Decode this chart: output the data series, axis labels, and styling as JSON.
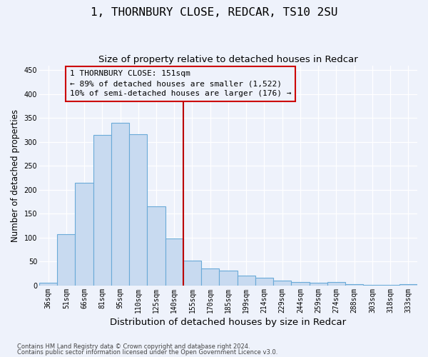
{
  "title": "1, THORNBURY CLOSE, REDCAR, TS10 2SU",
  "subtitle": "Size of property relative to detached houses in Redcar",
  "xlabel": "Distribution of detached houses by size in Redcar",
  "ylabel": "Number of detached properties",
  "categories": [
    "36sqm",
    "51sqm",
    "66sqm",
    "81sqm",
    "95sqm",
    "110sqm",
    "125sqm",
    "140sqm",
    "155sqm",
    "170sqm",
    "185sqm",
    "199sqm",
    "214sqm",
    "229sqm",
    "244sqm",
    "259sqm",
    "274sqm",
    "288sqm",
    "303sqm",
    "318sqm",
    "333sqm"
  ],
  "values": [
    5,
    107,
    215,
    314,
    340,
    316,
    165,
    98,
    51,
    35,
    30,
    20,
    15,
    10,
    7,
    5,
    7,
    2,
    1,
    1,
    2
  ],
  "bar_color": "#c8daf0",
  "bar_edge_color": "#6aaad8",
  "vline_pos": 7.5,
  "vline_color": "#bb0000",
  "annotation_line1": "1 THORNBURY CLOSE: 151sqm",
  "annotation_line2": "← 89% of detached houses are smaller (1,522)",
  "annotation_line3": "10% of semi-detached houses are larger (176) →",
  "annotation_box_color": "#cc0000",
  "ylim": [
    0,
    460
  ],
  "yticks": [
    0,
    50,
    100,
    150,
    200,
    250,
    300,
    350,
    400,
    450
  ],
  "footnote1": "Contains HM Land Registry data © Crown copyright and database right 2024.",
  "footnote2": "Contains public sector information licensed under the Open Government Licence v3.0.",
  "bg_color": "#eef2fb",
  "grid_color": "#ffffff",
  "title_fontsize": 11.5,
  "subtitle_fontsize": 9.5,
  "xlabel_fontsize": 9.5,
  "ylabel_fontsize": 8.5,
  "tick_fontsize": 7,
  "annotation_fontsize": 8,
  "footnote_fontsize": 6
}
